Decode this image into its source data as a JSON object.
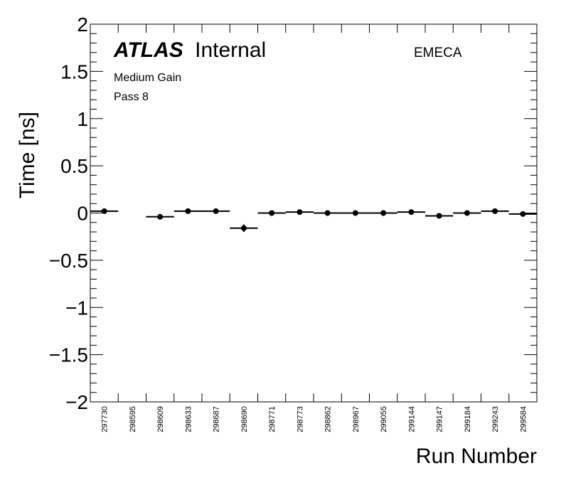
{
  "chart_data": {
    "type": "scatter",
    "title": "",
    "xlabel": "Run Number",
    "ylabel": "Time [ns]",
    "ylim": [
      -2,
      2
    ],
    "yticks": [
      "2",
      "1.5",
      "1",
      "0.5",
      "0",
      "−0.5",
      "−1",
      "−1.5",
      "−2"
    ],
    "ytick_values": [
      2,
      1.5,
      1,
      0.5,
      0,
      -0.5,
      -1,
      -1.5,
      -2
    ],
    "categories": [
      "297730",
      "298595",
      "298609",
      "298633",
      "298687",
      "298690",
      "298771",
      "298773",
      "298862",
      "298967",
      "299055",
      "299144",
      "299147",
      "299184",
      "299243",
      "299584"
    ],
    "values": [
      0.02,
      null,
      -0.04,
      0.02,
      0.02,
      -0.16,
      0.0,
      0.01,
      0.0,
      0.0,
      0.0,
      0.01,
      -0.03,
      0.0,
      0.02,
      -0.01
    ],
    "yerr": [
      0.005,
      null,
      0.005,
      0.005,
      0.005,
      0.04,
      0.005,
      0.005,
      0.005,
      0.005,
      0.005,
      0.005,
      0.005,
      0.005,
      0.005,
      0.005
    ],
    "grid": false,
    "marker_color": "#000000"
  },
  "annotations": {
    "atlas_bold": "ATLAS",
    "atlas_rest": "Internal",
    "region": "EMECA",
    "gain": "Medium Gain",
    "pass": "Pass 8"
  }
}
